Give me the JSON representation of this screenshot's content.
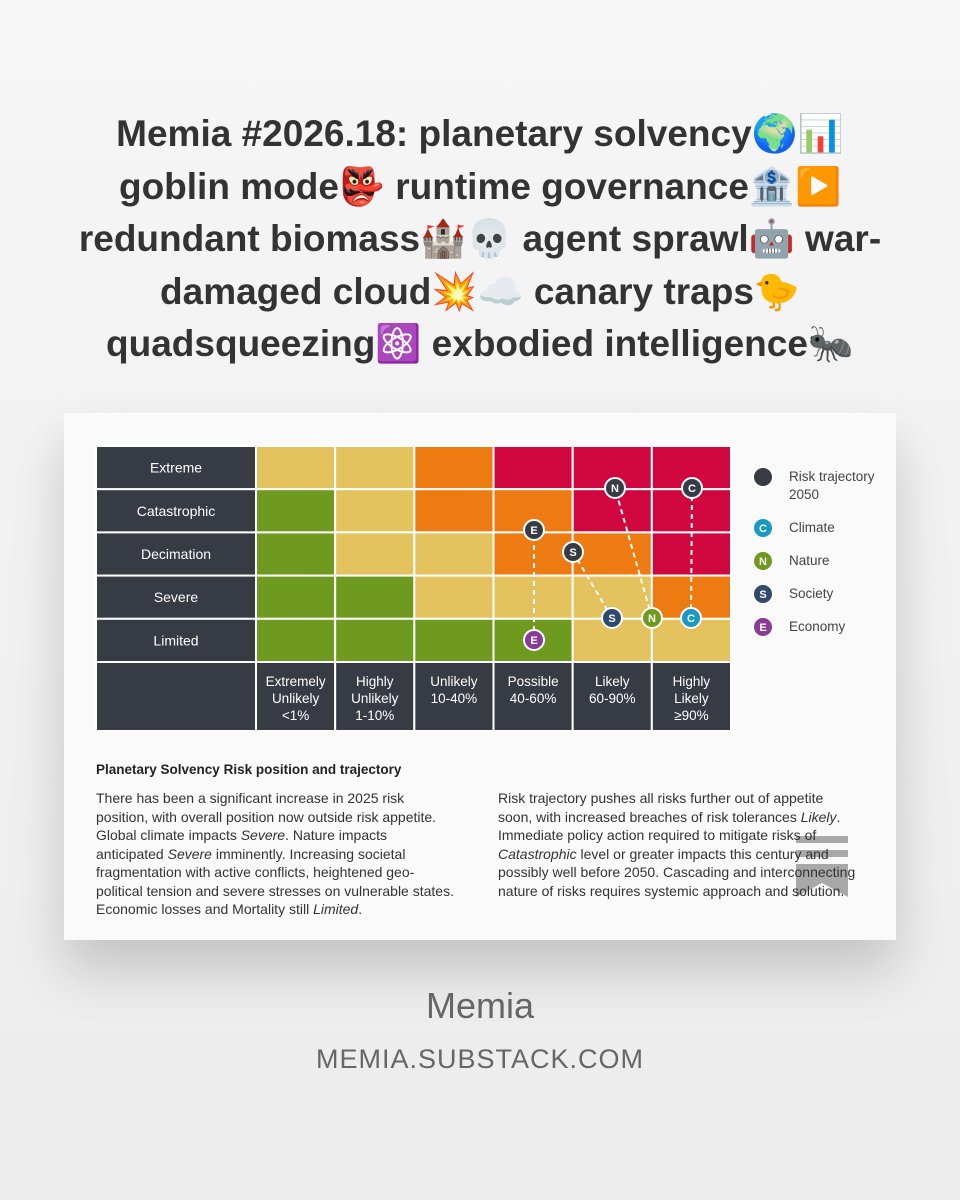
{
  "header": {
    "title_lines": [
      "Memia #2026.18: planetary solvency🌍📊",
      "goblin mode👺 runtime governance🏦▶️",
      "redundant biomass🏰💀 agent sprawl🤖 war-",
      "damaged cloud💥☁️ canary traps🐤",
      "quadsqueezing⚛️ exbodied intelligence🐜"
    ]
  },
  "matrix": {
    "rows": [
      "Extreme",
      "Catastrophic",
      "Decimation",
      "Severe",
      "Limited"
    ],
    "columns": [
      [
        "Extremely",
        "Unlikely",
        "<1%"
      ],
      [
        "Highly",
        "Unlikely",
        "1-10%"
      ],
      [
        "Unlikely",
        "10-40%"
      ],
      [
        "Possible",
        "40-60%"
      ],
      [
        "Likely",
        "60-90%"
      ],
      [
        "Highly",
        "Likely",
        "≥90%"
      ]
    ],
    "cell_colors": [
      [
        "#e4c25d",
        "#e4c25d",
        "#ee7a12",
        "#d0073f",
        "#d0073f",
        "#d0073f"
      ],
      [
        "#6e9a1f",
        "#e4c25d",
        "#ee7a12",
        "#ee7a12",
        "#d0073f",
        "#d0073f"
      ],
      [
        "#6e9a1f",
        "#e4c25d",
        "#e4c25d",
        "#ee7a12",
        "#ee7a12",
        "#d0073f"
      ],
      [
        "#6e9a1f",
        "#6e9a1f",
        "#e4c25d",
        "#e4c25d",
        "#e4c25d",
        "#ee7a12"
      ],
      [
        "#6e9a1f",
        "#6e9a1f",
        "#6e9a1f",
        "#6e9a1f",
        "#e4c25d",
        "#e4c25d"
      ]
    ],
    "label_color": "#363b44",
    "legend": [
      {
        "label": "Risk trajectory 2050",
        "color": "#363b44"
      },
      {
        "letter": "C",
        "label": "Climate",
        "color": "#1a9ac0"
      },
      {
        "letter": "N",
        "label": "Nature",
        "color": "#6e9a1f"
      },
      {
        "letter": "S",
        "label": "Society",
        "color": "#2f4a6e"
      },
      {
        "letter": "E",
        "label": "Economy",
        "color": "#8b3a96"
      }
    ]
  },
  "caption": {
    "heading": "Planetary Solvency Risk position and trajectory",
    "paragraphs": [
      [
        {
          "text": "There has been a significant increase in 2025 risk position, with overall position now outside risk appetite. Global climate impacts "
        },
        {
          "text": "Severe",
          "italic": true
        },
        {
          "text": ". Nature impacts anticipated "
        },
        {
          "text": "Severe",
          "italic": true
        },
        {
          "text": " imminently. Increasing societal fragmentation with active conflicts, heightened geo-political tension and severe stresses on vulnerable states. Economic losses and Mortality still "
        },
        {
          "text": "Limited",
          "italic": true
        },
        {
          "text": "."
        }
      ],
      [
        {
          "text": "Risk trajectory pushes all risks further out of appetite soon, with increased breaches of risk tolerances "
        },
        {
          "text": "Likely",
          "italic": true
        },
        {
          "text": ". Immediate policy action required to mitigate risks of "
        },
        {
          "text": "Catastrophic",
          "italic": true
        },
        {
          "text": " level or greater impacts this century and possibly well before 2050. Cascading and interconnecting nature of risks requires systemic approach and solution."
        }
      ]
    ]
  },
  "footer": {
    "name": "Memia",
    "url": "MEMIA.SUBSTACK.COM"
  }
}
